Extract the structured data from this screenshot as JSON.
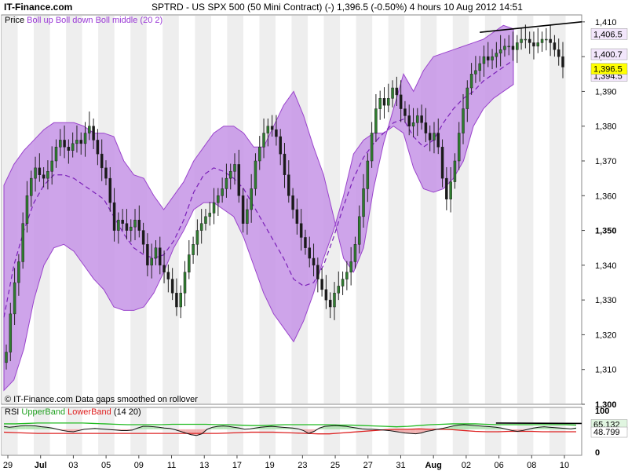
{
  "header": {
    "brand": "IT-Finance.com",
    "title": "SPTRD - US SPX 500 (50 Mini Contract) (-)    1,396.5 (-0.50%)     4 hours   10 Aug 2012 14:51"
  },
  "price_panel": {
    "legend_prefix": "Price",
    "legend_indicator": "Boll up Boll down Boll middle (20 2)",
    "footnote": "© IT-Finance.com  Data gaps smoothed on rollover",
    "price_tag": "1,396.5",
    "upper_tag": "1,406.5",
    "mid_tag": "1,400.7",
    "lower_tag": "1,394.5"
  },
  "rsi_panel": {
    "legend_prefix": "RSI",
    "legend_upper": "UpperBand",
    "legend_lower": "LowerBand",
    "legend_params": "(14 20)",
    "upper_tag": "65.132",
    "lower_tag": "48.799",
    "y_ticks": [
      "100",
      "0"
    ]
  },
  "colors": {
    "band_fill": "#c594e6",
    "band_edge": "#9a44cc",
    "mid_line": "#7a20b8",
    "candle_up": "#2f7d2f",
    "candle_down": "#1a1a1a",
    "rsi_green": "#22bb22",
    "rsi_red": "#dd2222",
    "shade_red": "#f0a0a0",
    "shade_green": "#a8e0a8",
    "price_tag_bg": "#ffff00"
  },
  "chart_data": [
    {
      "type": "candlestick",
      "series": [
        {
          "name": "Price"
        },
        {
          "name": "Boll up"
        },
        {
          "name": "Boll down"
        },
        {
          "name": "Boll middle"
        }
      ],
      "x_ticks": [
        "29",
        "Jul",
        "03",
        "05",
        "09",
        "11",
        "13",
        "17",
        "19",
        "23",
        "25",
        "27",
        "31",
        "Aug",
        "02",
        "06",
        "08",
        "10"
      ],
      "y_ticks": [
        "1,410",
        "1,400",
        "1,390",
        "1,380",
        "1,370",
        "1,360",
        "1,350",
        "1,340",
        "1,330",
        "1,320",
        "1,310",
        "1,300"
      ],
      "ylim": [
        1300,
        1412
      ],
      "close": [
        1315,
        1326,
        1335,
        1341,
        1352,
        1360,
        1365,
        1368,
        1366,
        1365,
        1367,
        1370,
        1374,
        1376,
        1374,
        1373,
        1375,
        1376,
        1375,
        1378,
        1380,
        1376,
        1372,
        1368,
        1365,
        1358,
        1350,
        1353,
        1352,
        1350,
        1351,
        1353,
        1350,
        1346,
        1340,
        1342,
        1345,
        1340,
        1338,
        1336,
        1332,
        1328,
        1332,
        1338,
        1343,
        1346,
        1350,
        1352,
        1354,
        1355,
        1358,
        1360,
        1362,
        1365,
        1367,
        1369,
        1360,
        1352,
        1356,
        1362,
        1370,
        1374,
        1378,
        1380,
        1379,
        1377,
        1372,
        1366,
        1360,
        1356,
        1352,
        1348,
        1345,
        1342,
        1340,
        1336,
        1333,
        1330,
        1328,
        1332,
        1334,
        1336,
        1338,
        1341,
        1346,
        1354,
        1362,
        1370,
        1378,
        1385,
        1388,
        1386,
        1388,
        1391,
        1389,
        1385,
        1383,
        1380,
        1381,
        1383,
        1381,
        1378,
        1376,
        1378,
        1374,
        1365,
        1359,
        1364,
        1370,
        1378,
        1385,
        1391,
        1395,
        1396,
        1398,
        1400,
        1399,
        1400,
        1401,
        1402,
        1403,
        1403,
        1402,
        1404,
        1405,
        1405,
        1404,
        1403,
        1404,
        1405,
        1405,
        1404,
        1402,
        1400,
        1397
      ],
      "boll_up": [
        1363,
        1369,
        1373,
        1376,
        1379,
        1381,
        1381,
        1381,
        1380,
        1378,
        1378,
        1377,
        1370,
        1366,
        1365,
        1360,
        1356,
        1360,
        1364,
        1370,
        1374,
        1378,
        1380,
        1380,
        1378,
        1374,
        1374,
        1380,
        1386,
        1390,
        1383,
        1374,
        1366,
        1354,
        1342,
        1338,
        1345,
        1362,
        1375,
        1385,
        1395,
        1390,
        1396,
        1400,
        1401,
        1402,
        1403,
        1404,
        1405,
        1407,
        1409,
        1408
      ],
      "boll_down": [
        1304,
        1307,
        1316,
        1330,
        1340,
        1345,
        1346,
        1344,
        1340,
        1336,
        1333,
        1328,
        1327,
        1327,
        1328,
        1332,
        1338,
        1345,
        1350,
        1356,
        1358,
        1358,
        1356,
        1354,
        1348,
        1340,
        1332,
        1326,
        1322,
        1318,
        1324,
        1332,
        1342,
        1350,
        1360,
        1372,
        1376,
        1378,
        1378,
        1380,
        1378,
        1368,
        1362,
        1361,
        1362,
        1365,
        1370,
        1380,
        1385,
        1388,
        1390,
        1392
      ],
      "boll_mid": [
        1325,
        1340,
        1350,
        1358,
        1363,
        1366,
        1366,
        1365,
        1363,
        1361,
        1359,
        1354,
        1349,
        1345,
        1343,
        1342,
        1343,
        1347,
        1353,
        1361,
        1366,
        1368,
        1367,
        1365,
        1362,
        1357,
        1352,
        1347,
        1342,
        1336,
        1334,
        1335,
        1340,
        1348,
        1357,
        1365,
        1371,
        1375,
        1378,
        1381,
        1382,
        1377,
        1374,
        1376,
        1381,
        1385,
        1388,
        1390,
        1393,
        1395,
        1397,
        1399
      ],
      "trendline": [
        [
          1404,
          1407
        ],
        [
          1409,
          1410
        ]
      ]
    },
    {
      "type": "line",
      "series": [
        {
          "name": "RSI",
          "values": [
            62,
            60,
            61,
            63,
            64,
            64,
            63,
            61,
            60,
            58,
            55,
            52,
            50,
            49,
            52,
            55,
            56,
            57,
            56,
            55,
            54,
            53,
            52,
            52,
            53,
            58,
            62,
            62,
            61,
            60,
            58,
            57,
            54,
            50,
            46,
            42,
            40,
            44,
            55,
            60,
            62,
            63,
            62,
            60,
            58,
            55,
            56,
            58,
            60,
            61,
            62,
            61,
            60,
            59,
            58,
            56,
            52,
            45,
            50,
            58,
            62,
            63,
            64,
            63,
            62,
            60,
            58,
            56,
            55,
            55,
            54,
            53,
            52,
            50,
            48,
            46,
            45,
            44,
            46,
            50,
            52,
            55,
            57,
            60,
            63,
            65,
            66,
            65,
            64,
            63,
            62,
            61,
            60,
            58,
            55,
            52,
            50,
            52,
            55,
            58,
            60,
            61,
            60,
            59,
            58,
            57,
            56,
            58
          ]
        },
        {
          "name": "UpperBand",
          "values": [
            68,
            68,
            69,
            70,
            70,
            70,
            70,
            70,
            69,
            68,
            67,
            66,
            66,
            66,
            66,
            67,
            67,
            67,
            67,
            66,
            66,
            65,
            64,
            64,
            65,
            66,
            66,
            66,
            66,
            66,
            65,
            65,
            64,
            63,
            62,
            61,
            62,
            64,
            66,
            67,
            68,
            68,
            68,
            67,
            66,
            66,
            66,
            66,
            66,
            66,
            66,
            65
          ]
        },
        {
          "name": "LowerBand",
          "values": [
            48,
            47,
            46,
            45,
            45,
            45,
            45,
            45,
            45,
            45,
            45,
            45,
            45,
            45,
            45,
            45,
            45,
            45,
            45,
            45,
            46,
            47,
            48,
            48,
            48,
            47,
            46,
            45,
            44,
            44,
            46,
            48,
            50,
            52,
            54,
            55,
            55,
            56,
            55,
            55,
            54,
            52,
            50,
            49,
            49,
            50,
            50,
            50,
            49,
            49,
            49,
            49
          ]
        }
      ],
      "ylim": [
        0,
        100
      ],
      "y_ticks": [
        "100",
        "0"
      ]
    }
  ]
}
